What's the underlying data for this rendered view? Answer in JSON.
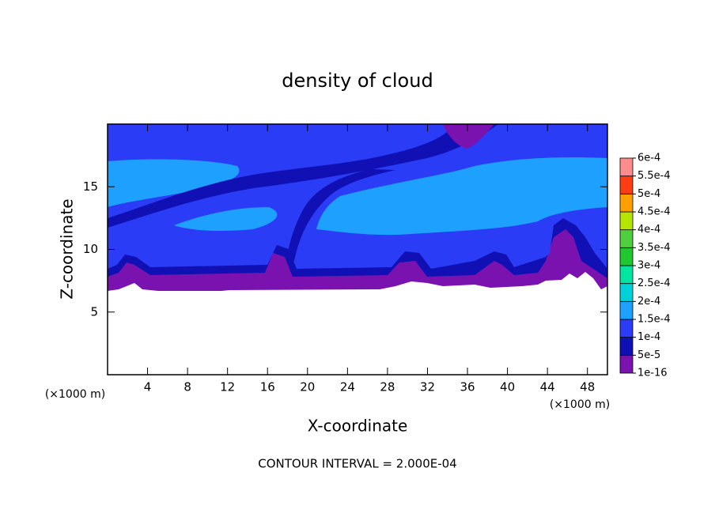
{
  "chart_data": {
    "type": "contour",
    "title": "density of cloud",
    "xlabel": "X-coordinate",
    "ylabel": "Z-coordinate",
    "x_unit_label": "(×1000 m)",
    "y_unit_label": "(×1000 m)",
    "footer": "CONTOUR INTERVAL = 2.000E-04",
    "xlim": [
      0,
      50
    ],
    "ylim": [
      0,
      20
    ],
    "xticks": [
      4,
      8,
      12,
      16,
      20,
      24,
      28,
      32,
      36,
      40,
      44,
      48
    ],
    "yticks": [
      5,
      10,
      15
    ],
    "colorbar": {
      "ticks": [
        {
          "value": 1e-16,
          "label": "1e-16"
        },
        {
          "value": 5e-05,
          "label": "5e-5"
        },
        {
          "value": 0.0001,
          "label": "1e-4"
        },
        {
          "value": 0.00015,
          "label": "1.5e-4"
        },
        {
          "value": 0.0002,
          "label": "2e-4"
        },
        {
          "value": 0.00025,
          "label": "2.5e-4"
        },
        {
          "value": 0.0003,
          "label": "3e-4"
        },
        {
          "value": 0.00035,
          "label": "3.5e-4"
        },
        {
          "value": 0.0004,
          "label": "4e-4"
        },
        {
          "value": 0.00045,
          "label": "4.5e-4"
        },
        {
          "value": 0.0005,
          "label": "5e-4"
        },
        {
          "value": 0.00055,
          "label": "5.5e-4"
        },
        {
          "value": 0.0006,
          "label": "6e-4"
        }
      ],
      "colors": [
        "#7a12b0",
        "#1010b4",
        "#2a3cf5",
        "#1ea0ff",
        "#00d0d8",
        "#00e6a0",
        "#20c830",
        "#50d040",
        "#b4e600",
        "#ffa000",
        "#ff3c14",
        "#ff8c8c"
      ]
    }
  }
}
